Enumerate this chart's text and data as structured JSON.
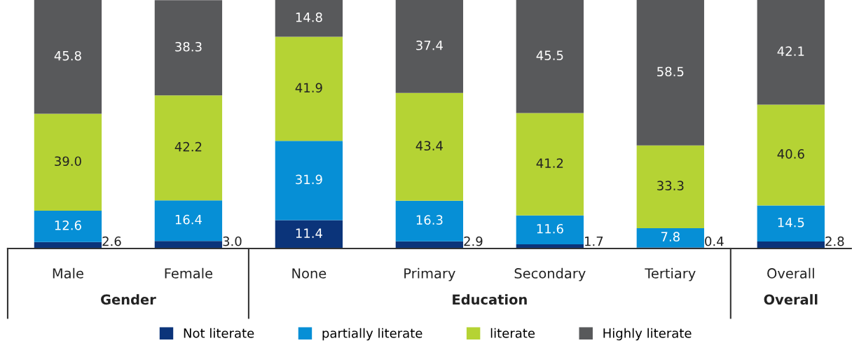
{
  "chart_data": {
    "type": "bar",
    "stacked": true,
    "categories": [
      "Male",
      "Female",
      "None",
      "Primary",
      "Secondary",
      "Tertiary",
      "Overall"
    ],
    "series": [
      {
        "name": "Not literate",
        "color": "#0b347a",
        "values": [
          2.6,
          3.0,
          11.4,
          2.9,
          1.7,
          0.4,
          2.8
        ],
        "value_labels": [
          "2.6",
          "3.0",
          "11.4",
          "2.9",
          "1.7",
          "0.4",
          "2.8"
        ]
      },
      {
        "name": "partially literate",
        "color": "#068fd6",
        "values": [
          12.6,
          16.4,
          31.9,
          16.3,
          11.6,
          7.8,
          14.5
        ],
        "value_labels": [
          "12.6",
          "16.4",
          "31.9",
          "16.3",
          "11.6",
          "7.8",
          "14.5"
        ]
      },
      {
        "name": "literate",
        "color": "#b5d334",
        "values": [
          39.0,
          42.2,
          41.9,
          43.4,
          41.2,
          33.3,
          40.6
        ],
        "value_labels": [
          "39.0",
          "42.2",
          "41.9",
          "43.4",
          "41.2",
          "33.3",
          "40.6"
        ]
      },
      {
        "name": "Highly literate",
        "color": "#58595b",
        "values": [
          45.8,
          38.3,
          14.8,
          37.4,
          45.5,
          58.5,
          42.1
        ],
        "value_labels": [
          "45.8",
          "38.3",
          "14.8",
          "37.4",
          "45.5",
          "58.5",
          "42.1"
        ]
      }
    ],
    "ylim": [
      0,
      100
    ],
    "legend": "bottom",
    "grid": false,
    "tick_labels": "x",
    "annotations": [
      "Gender",
      "Education",
      "Overall"
    ]
  }
}
